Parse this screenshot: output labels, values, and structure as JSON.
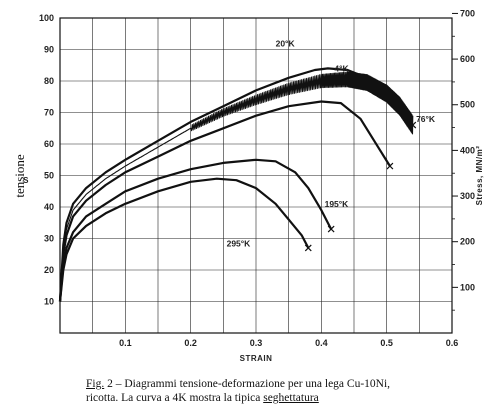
{
  "chart_data": {
    "type": "line",
    "xlabel": "STRAIN",
    "ylabel_left": "S",
    "ylabel_right": "Stress, MN/m²",
    "xlim": [
      0,
      0.6
    ],
    "ylim": [
      0,
      100
    ],
    "x_ticks": [
      "0.1",
      "0.2",
      "0.3",
      "0.4",
      "0.5",
      "0.6"
    ],
    "y_ticks": [
      "10",
      "20",
      "30",
      "40",
      "50",
      "60",
      "70",
      "80",
      "90",
      "100"
    ],
    "y2_ticks": [
      "100",
      "200",
      "300",
      "400",
      "500",
      "600",
      "700"
    ],
    "grid": true,
    "series": [
      {
        "name": "20°K",
        "serrated": false,
        "label_at": [
          0.33,
          91
        ],
        "x": [
          0,
          0.005,
          0.01,
          0.02,
          0.04,
          0.07,
          0.1,
          0.15,
          0.2,
          0.25,
          0.3,
          0.35,
          0.39,
          0.41,
          0.44,
          0.47,
          0.5,
          0.52,
          0.535
        ],
        "y": [
          10,
          28,
          35,
          41,
          46,
          51,
          55,
          61,
          67,
          72,
          77,
          81,
          83.5,
          84,
          83.5,
          81,
          77,
          73,
          68
        ]
      },
      {
        "name": "4°K",
        "serrated": true,
        "end_mark": true,
        "label_at": [
          0.42,
          83
        ],
        "x": [
          0,
          0.005,
          0.01,
          0.02,
          0.04,
          0.07,
          0.1,
          0.15,
          0.2,
          0.25,
          0.3,
          0.35,
          0.4,
          0.44,
          0.47,
          0.5,
          0.52,
          0.54
        ],
        "y": [
          10,
          27,
          33,
          39,
          44,
          49,
          53,
          59,
          65,
          70,
          74,
          77.5,
          80,
          80.5,
          79.5,
          76,
          72,
          66
        ]
      },
      {
        "name": "76°K",
        "serrated": false,
        "end_mark": true,
        "label_at": [
          0.545,
          67
        ],
        "x": [
          0,
          0.005,
          0.01,
          0.02,
          0.04,
          0.07,
          0.1,
          0.15,
          0.2,
          0.25,
          0.3,
          0.35,
          0.4,
          0.43,
          0.46,
          0.49,
          0.505
        ],
        "y": [
          10,
          25,
          31,
          37,
          42,
          47,
          51,
          56,
          61,
          65,
          69,
          72,
          73.5,
          73,
          68,
          58,
          53
        ]
      },
      {
        "name": "195°K",
        "serrated": false,
        "end_mark": true,
        "label_at": [
          0.405,
          40
        ],
        "x": [
          0,
          0.005,
          0.01,
          0.02,
          0.04,
          0.07,
          0.1,
          0.15,
          0.2,
          0.25,
          0.3,
          0.33,
          0.36,
          0.38,
          0.4,
          0.415
        ],
        "y": [
          10,
          22,
          27,
          32,
          37,
          41,
          45,
          49,
          52,
          54,
          55,
          54.5,
          51,
          46,
          39,
          33
        ]
      },
      {
        "name": "295°K",
        "serrated": false,
        "end_mark": true,
        "label_at": [
          0.255,
          27.5
        ],
        "x": [
          0,
          0.005,
          0.01,
          0.02,
          0.04,
          0.07,
          0.1,
          0.15,
          0.2,
          0.24,
          0.27,
          0.3,
          0.33,
          0.35,
          0.37,
          0.38
        ],
        "y": [
          10,
          20,
          25,
          30,
          34,
          38,
          41,
          45,
          48,
          49,
          48.5,
          46,
          41,
          36,
          31,
          27
        ]
      }
    ]
  },
  "labels": {
    "side_ylabel": "tensione",
    "caption_prefix": "Fig.",
    "caption_text": " 2 – Diagrammi tensione-deformazione per una lega Cu-10Ni, ricotta. La curva a 4K mostra la tipica ",
    "caption_last": "seghettatura"
  }
}
